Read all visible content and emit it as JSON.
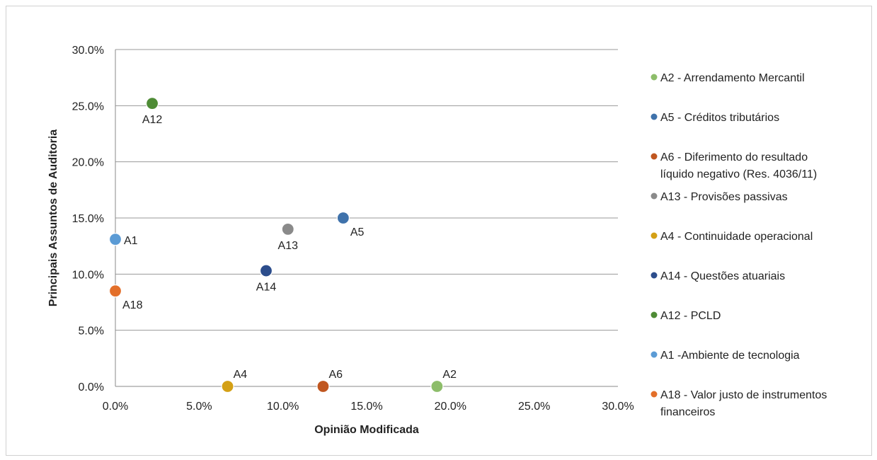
{
  "chart_data": {
    "type": "scatter",
    "title": "",
    "xlabel": "Opinião Modificada",
    "ylabel": "Principais Assuntos de Auditoria",
    "xlim": [
      0,
      30
    ],
    "ylim": [
      0,
      30
    ],
    "x_ticks": [
      0,
      5,
      10,
      15,
      20,
      25,
      30
    ],
    "y_ticks": [
      0,
      5,
      10,
      15,
      20,
      25,
      30
    ],
    "x_tick_labels": [
      "0.0%",
      "5.0%",
      "10.0%",
      "15.0%",
      "20.0%",
      "25.0%",
      "30.0%"
    ],
    "y_tick_labels": [
      "0.0%",
      "5.0%",
      "10.0%",
      "15.0%",
      "20.0%",
      "25.0%",
      "30.0%"
    ],
    "grid": "horizontal",
    "legend_position": "right",
    "series": [
      {
        "name": "A2 - Arrendamento Mercantil",
        "label": "A2",
        "x": 19.2,
        "y": 0.0,
        "color": "#8dbd6a",
        "label_pos": "above-right"
      },
      {
        "name": "A5 - Créditos tributários",
        "label": "A5",
        "x": 13.6,
        "y": 15.0,
        "color": "#3f72ab",
        "label_pos": "below-right"
      },
      {
        "name": "A6 - Diferimento do resultado líquido negativo  (Res. 4036/11)",
        "legend_lines": [
          "A6 - Diferimento do resultado",
          "líquido negativo  (Res. 4036/11)"
        ],
        "label": "A6",
        "x": 12.4,
        "y": 0.0,
        "color": "#c0561f",
        "label_pos": "above-right"
      },
      {
        "name": "A13 - Provisões passivas",
        "label": "A13",
        "x": 10.3,
        "y": 14.0,
        "color": "#8a8a8a",
        "label_pos": "below"
      },
      {
        "name": "A4 - Continuidade operacional",
        "label": "A4",
        "x": 6.7,
        "y": 0.0,
        "color": "#d4a015",
        "label_pos": "above-right"
      },
      {
        "name": "A14 - Questões atuariais",
        "label": "A14",
        "x": 9.0,
        "y": 10.3,
        "color": "#2c4d8c",
        "label_pos": "below"
      },
      {
        "name": "A12 - PCLD",
        "label": "A12",
        "x": 2.2,
        "y": 25.2,
        "color": "#4e8b35",
        "label_pos": "below"
      },
      {
        "name": "A1 -Ambiente de tecnologia",
        "label": "A1",
        "x": 0.0,
        "y": 13.1,
        "color": "#5b9bd5",
        "label_pos": "right"
      },
      {
        "name": "A18 - Valor justo de instrumentos financeiros",
        "legend_lines": [
          "A18 - Valor justo de instrumentos",
          "financeiros"
        ],
        "label": "A18",
        "x": 0.0,
        "y": 8.5,
        "color": "#e36f2a",
        "label_pos": "below-right"
      }
    ]
  }
}
